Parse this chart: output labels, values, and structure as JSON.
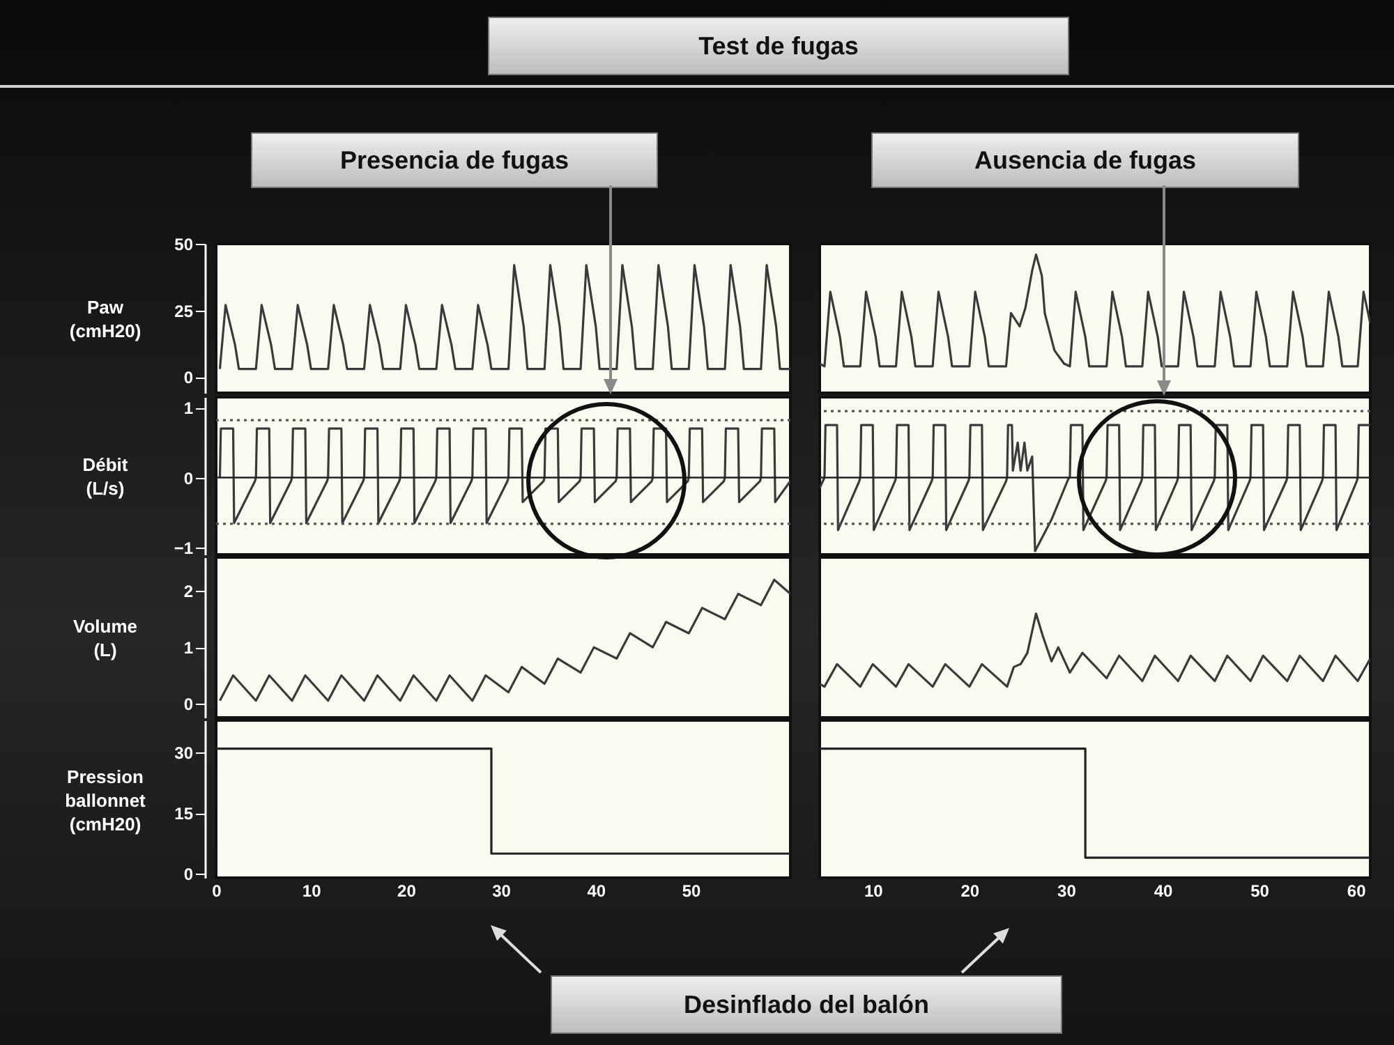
{
  "chart_data": [
    {
      "type": "line",
      "title": "Test de fugas",
      "subtitle": "Presencia de fugas",
      "ylabel": "Paw\n(cmH20)",
      "xlim": [
        0,
        60.5
      ],
      "ylim": [
        -6,
        50
      ],
      "yticks": [
        0,
        25,
        50
      ],
      "tick_labels": "y",
      "series": [
        {
          "color": "#3a3a3a",
          "x": [
            0.4,
            1,
            2,
            2.4,
            4.2,
            4.8,
            5.8,
            6.2,
            8,
            8.6,
            9.6,
            10,
            11.8,
            12.4,
            13.4,
            13.8,
            15.6,
            16.2,
            17.2,
            17.6,
            19.4,
            20,
            21,
            21.4,
            23.2,
            23.8,
            24.8,
            25.2,
            27,
            27.6,
            28.6,
            29,
            30.8,
            31.4,
            32.4,
            32.8,
            34.6,
            35.2,
            36.2,
            36.6,
            38.4,
            39,
            40,
            40.4,
            42.2,
            42.8,
            43.8,
            44.2,
            46,
            46.6,
            47.6,
            48,
            49.8,
            50.4,
            51.4,
            51.8,
            53.6,
            54.2,
            55.2,
            55.6,
            57.4,
            58,
            59,
            59.4,
            60.5
          ],
          "values": [
            3,
            27,
            12,
            3,
            3,
            27,
            12,
            3,
            3,
            27,
            12,
            3,
            3,
            27,
            12,
            3,
            3,
            27,
            12,
            3,
            3,
            27,
            12,
            3,
            3,
            27,
            12,
            3,
            3,
            27,
            12,
            3,
            3,
            42,
            19,
            3,
            3,
            42,
            19,
            3,
            3,
            42,
            19,
            3,
            3,
            42,
            19,
            3,
            3,
            42,
            19,
            3,
            3,
            42,
            19,
            3,
            3,
            42,
            19,
            3,
            3,
            42,
            19,
            3,
            3
          ]
        }
      ]
    },
    {
      "type": "line",
      "ylabel": "Débit\n(L/s)",
      "xlim": [
        0,
        60.5
      ],
      "ylim": [
        -1.1,
        1.15
      ],
      "yticks": [
        -1,
        0,
        1
      ],
      "tick_labels": "y",
      "ref_lines": [
        {
          "axis": "y",
          "value": 0,
          "line_style": "solid",
          "color": "#222222"
        },
        {
          "axis": "y",
          "value": 0.82,
          "line_style": "dotted",
          "color": "#555555"
        },
        {
          "axis": "y",
          "value": -0.66,
          "line_style": "dotted",
          "color": "#555555"
        }
      ],
      "series": [
        {
          "color": "#3a3a3a",
          "x": [
            0.4,
            0.5,
            1.8,
            1.9,
            4.1,
            4.2,
            4.3,
            5.6,
            5.7,
            7.9,
            8,
            8.1,
            9.4,
            9.5,
            11.7,
            11.8,
            11.9,
            13.2,
            13.3,
            15.5,
            15.6,
            15.7,
            17,
            17.1,
            19.3,
            19.4,
            19.5,
            20.8,
            20.9,
            23.1,
            23.2,
            23.3,
            24.6,
            24.7,
            26.9,
            27,
            27.1,
            28.4,
            28.5,
            30.7,
            30.8,
            30.9,
            32.2,
            32.3,
            34.5,
            34.6,
            34.7,
            36,
            36.1,
            38.3,
            38.4,
            38.5,
            39.8,
            39.9,
            42.1,
            42.2,
            42.3,
            43.6,
            43.7,
            45.9,
            46,
            46.1,
            47.4,
            47.5,
            49.7,
            49.8,
            49.9,
            51.2,
            51.3,
            53.5,
            53.6,
            53.7,
            55,
            55.1,
            57.3,
            57.4,
            57.5,
            58.8,
            58.9,
            60.5
          ],
          "values": [
            0,
            0.7,
            0.7,
            -0.65,
            -0.05,
            0,
            0.7,
            0.7,
            -0.65,
            -0.05,
            0,
            0.7,
            0.7,
            -0.65,
            -0.05,
            0,
            0.7,
            0.7,
            -0.65,
            -0.05,
            0,
            0.7,
            0.7,
            -0.65,
            -0.05,
            0,
            0.7,
            0.7,
            -0.65,
            -0.05,
            0,
            0.7,
            0.7,
            -0.65,
            -0.05,
            0,
            0.7,
            0.7,
            -0.65,
            -0.05,
            0,
            0.7,
            0.7,
            -0.35,
            -0.05,
            0,
            0.7,
            0.7,
            -0.35,
            -0.05,
            0,
            0.7,
            0.7,
            -0.35,
            -0.05,
            0,
            0.7,
            0.7,
            -0.35,
            -0.05,
            0,
            0.7,
            0.7,
            -0.35,
            -0.05,
            0,
            0.7,
            0.7,
            -0.35,
            -0.05,
            0,
            0.7,
            0.7,
            -0.35,
            -0.05,
            0,
            0.7,
            0.7,
            -0.35,
            -0.05
          ]
        }
      ]
    },
    {
      "type": "line",
      "ylabel": "Volume\n(L)",
      "xlim": [
        0,
        60.5
      ],
      "ylim": [
        -0.25,
        2.6
      ],
      "yticks": [
        0,
        1,
        2
      ],
      "tick_labels": "y",
      "series": [
        {
          "color": "#3a3a3a",
          "x": [
            0.4,
            1.8,
            4.2,
            5.6,
            8,
            9.4,
            11.8,
            13.2,
            15.6,
            17,
            19.4,
            20.8,
            23.2,
            24.6,
            27,
            28.4,
            30.8,
            32.2,
            34.6,
            36,
            38.4,
            39.8,
            42.2,
            43.6,
            46,
            47.4,
            49.8,
            51.2,
            53.6,
            55,
            57.4,
            58.8,
            60.5
          ],
          "values": [
            0.05,
            0.5,
            0.05,
            0.5,
            0.05,
            0.5,
            0.05,
            0.5,
            0.05,
            0.5,
            0.05,
            0.5,
            0.05,
            0.5,
            0.05,
            0.5,
            0.2,
            0.65,
            0.35,
            0.8,
            0.55,
            1.0,
            0.8,
            1.25,
            1.0,
            1.45,
            1.25,
            1.7,
            1.5,
            1.95,
            1.75,
            2.2,
            1.95
          ]
        }
      ]
    },
    {
      "type": "line",
      "ylabel": "Pression\nballonnet\n(cmH20)",
      "xlim": [
        0,
        60.5
      ],
      "ylim": [
        -1,
        38
      ],
      "yticks": [
        0,
        15,
        30
      ],
      "xticks": [
        0,
        10,
        20,
        30,
        40,
        50
      ],
      "annotations": [
        "Desinflado del balón"
      ],
      "series": [
        {
          "color": "#222222",
          "x": [
            0,
            29,
            29,
            60.5
          ],
          "values": [
            31,
            31,
            5,
            5
          ]
        }
      ]
    },
    {
      "type": "line",
      "subtitle": "Ausencia de fugas",
      "xlim": [
        4.5,
        61.5
      ],
      "ylim": [
        -6,
        50
      ],
      "tick_labels": false,
      "series": [
        {
          "color": "#3a3a3a",
          "x": [
            4.5,
            5,
            5.6,
            6.6,
            7,
            8.7,
            9.3,
            10.3,
            10.7,
            12.4,
            13,
            14,
            14.4,
            16.2,
            16.8,
            17.8,
            18.2,
            20,
            20.6,
            21.6,
            22,
            23.8,
            24.3,
            25.2,
            25.8,
            26.5,
            26.9,
            27.5,
            27.8,
            28.8,
            29.8,
            30.4,
            31,
            32,
            32.4,
            34.2,
            34.8,
            35.8,
            36.2,
            37.9,
            38.5,
            39.5,
            39.9,
            41.6,
            42.2,
            43.2,
            43.6,
            45.4,
            46,
            47,
            47.4,
            49.1,
            49.7,
            50.7,
            51.1,
            52.9,
            53.5,
            54.5,
            54.9,
            56.6,
            57.2,
            58.2,
            58.6,
            60.2,
            60.8,
            61.5
          ],
          "values": [
            5,
            4,
            32,
            15,
            4,
            4,
            32,
            15,
            4,
            4,
            32,
            15,
            4,
            4,
            32,
            15,
            4,
            4,
            32,
            15,
            4,
            4,
            24,
            19,
            26,
            40,
            46,
            38,
            24,
            10,
            5,
            4,
            32,
            15,
            4,
            4,
            32,
            15,
            4,
            4,
            32,
            15,
            4,
            4,
            32,
            15,
            4,
            4,
            32,
            15,
            4,
            4,
            32,
            15,
            4,
            4,
            32,
            15,
            4,
            4,
            32,
            15,
            4,
            4,
            32,
            20
          ]
        }
      ]
    },
    {
      "type": "line",
      "xlim": [
        4.5,
        61.5
      ],
      "ylim": [
        -1.1,
        1.15
      ],
      "tick_labels": false,
      "ref_lines": [
        {
          "axis": "y",
          "value": 0,
          "line_style": "solid",
          "color": "#222222"
        },
        {
          "axis": "y",
          "value": 0.95,
          "line_style": "dotted",
          "color": "#555555"
        },
        {
          "axis": "y",
          "value": -0.66,
          "line_style": "dotted",
          "color": "#555555"
        }
      ],
      "series": [
        {
          "color": "#3a3a3a",
          "x": [
            4.5,
            5,
            5.1,
            6.3,
            6.4,
            8.6,
            8.7,
            8.8,
            10,
            10.1,
            12.3,
            12.4,
            12.5,
            13.7,
            13.8,
            16.1,
            16.2,
            16.3,
            17.5,
            17.6,
            19.9,
            20,
            20.1,
            21.3,
            21.4,
            23.8,
            23.9,
            24,
            24.4,
            24.5,
            25,
            25.3,
            25.7,
            26,
            26.5,
            26.8,
            28.5,
            30.3,
            30.4,
            30.5,
            31.7,
            31.8,
            34.1,
            34.2,
            34.3,
            35.5,
            35.6,
            37.8,
            37.9,
            38,
            39.2,
            39.3,
            41.5,
            41.6,
            41.7,
            42.9,
            43,
            45.3,
            45.4,
            45.5,
            46.7,
            46.8,
            49,
            49.1,
            49.2,
            50.4,
            50.5,
            52.8,
            52.9,
            53,
            54.2,
            54.3,
            56.5,
            56.6,
            56.7,
            57.9,
            58,
            60.1,
            60.2,
            60.3,
            61.5
          ],
          "values": [
            -0.15,
            0,
            0.75,
            0.75,
            -0.75,
            -0.05,
            0,
            0.75,
            0.75,
            -0.75,
            -0.05,
            0,
            0.75,
            0.75,
            -0.75,
            -0.05,
            0,
            0.75,
            0.75,
            -0.75,
            -0.05,
            0,
            0.75,
            0.75,
            -0.75,
            -0.05,
            0,
            0.75,
            0.75,
            0.1,
            0.5,
            0.1,
            0.5,
            0.1,
            0.3,
            -1.05,
            -0.6,
            0,
            0,
            0.75,
            0.75,
            -0.75,
            -0.05,
            0,
            0.75,
            0.75,
            -0.75,
            -0.05,
            0,
            0.75,
            0.75,
            -0.75,
            -0.05,
            0,
            0.75,
            0.75,
            -0.75,
            -0.05,
            0,
            0.75,
            0.75,
            -0.75,
            -0.05,
            0,
            0.75,
            0.75,
            -0.75,
            -0.05,
            0,
            0.75,
            0.75,
            -0.75,
            -0.05,
            0,
            0.75,
            0.75,
            -0.75,
            -0.05,
            0,
            0.75,
            0.75
          ]
        }
      ]
    },
    {
      "type": "line",
      "xlim": [
        4.5,
        61.5
      ],
      "ylim": [
        -0.25,
        2.6
      ],
      "tick_labels": false,
      "series": [
        {
          "color": "#3a3a3a",
          "x": [
            4.5,
            5,
            6.3,
            8.7,
            10,
            12.4,
            13.7,
            16.2,
            17.5,
            20,
            21.3,
            23.9,
            24.6,
            25.3,
            26,
            26.9,
            27.6,
            28.5,
            29.2,
            30.4,
            31.7,
            34.2,
            35.5,
            37.9,
            39.2,
            41.6,
            42.9,
            45.4,
            46.7,
            49.1,
            50.4,
            52.9,
            54.2,
            56.6,
            57.9,
            60.2,
            61.5
          ],
          "values": [
            0.35,
            0.3,
            0.7,
            0.3,
            0.7,
            0.3,
            0.7,
            0.3,
            0.7,
            0.3,
            0.7,
            0.3,
            0.65,
            0.7,
            0.9,
            1.6,
            1.2,
            0.75,
            1.0,
            0.55,
            0.9,
            0.45,
            0.85,
            0.4,
            0.85,
            0.4,
            0.85,
            0.4,
            0.85,
            0.4,
            0.85,
            0.4,
            0.85,
            0.4,
            0.85,
            0.4,
            0.8
          ]
        }
      ]
    },
    {
      "type": "line",
      "xlim": [
        4.5,
        61.5
      ],
      "ylim": [
        -1,
        38
      ],
      "xticks": [
        10,
        20,
        30,
        40,
        50,
        60
      ],
      "tick_labels": "x",
      "series": [
        {
          "color": "#222222",
          "x": [
            4.5,
            32,
            32,
            61.5
          ],
          "values": [
            31,
            31,
            4,
            4
          ]
        }
      ]
    }
  ]
}
